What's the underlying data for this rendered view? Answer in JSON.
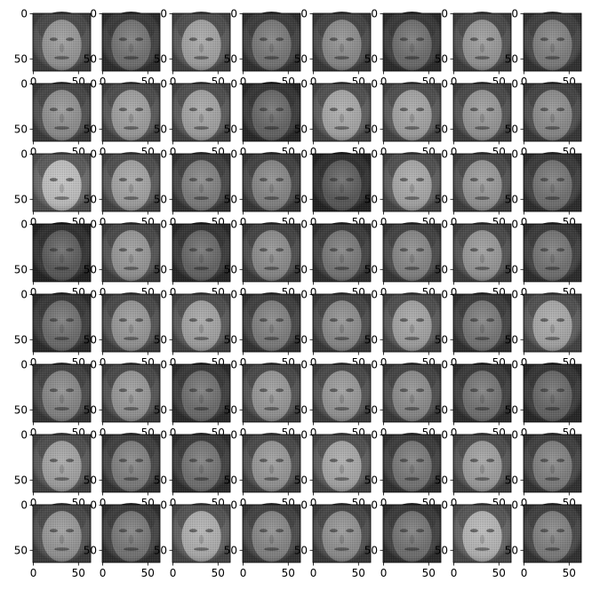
{
  "figure": {
    "rows": 8,
    "cols": 8,
    "x_ticks": [
      "0",
      "50"
    ],
    "y_ticks": [
      "0",
      "50"
    ],
    "image_extent": 64,
    "colormap": "gray",
    "background": "#ffffff"
  },
  "panels": [
    {
      "brightness": 0.55
    },
    {
      "brightness": 0.4
    },
    {
      "brightness": 0.6
    },
    {
      "brightness": 0.42
    },
    {
      "brightness": 0.5
    },
    {
      "brightness": 0.38
    },
    {
      "brightness": 0.55
    },
    {
      "brightness": 0.45
    },
    {
      "brightness": 0.52
    },
    {
      "brightness": 0.58
    },
    {
      "brightness": 0.6
    },
    {
      "brightness": 0.35
    },
    {
      "brightness": 0.62
    },
    {
      "brightness": 0.6
    },
    {
      "brightness": 0.55
    },
    {
      "brightness": 0.5
    },
    {
      "brightness": 0.72
    },
    {
      "brightness": 0.6
    },
    {
      "brightness": 0.45
    },
    {
      "brightness": 0.48
    },
    {
      "brightness": 0.3
    },
    {
      "brightness": 0.62
    },
    {
      "brightness": 0.55
    },
    {
      "brightness": 0.4
    },
    {
      "brightness": 0.3
    },
    {
      "brightness": 0.55
    },
    {
      "brightness": 0.35
    },
    {
      "brightness": 0.5
    },
    {
      "brightness": 0.42
    },
    {
      "brightness": 0.48
    },
    {
      "brightness": 0.55
    },
    {
      "brightness": 0.4
    },
    {
      "brightness": 0.38
    },
    {
      "brightness": 0.55
    },
    {
      "brightness": 0.6
    },
    {
      "brightness": 0.45
    },
    {
      "brightness": 0.5
    },
    {
      "brightness": 0.6
    },
    {
      "brightness": 0.42
    },
    {
      "brightness": 0.62
    },
    {
      "brightness": 0.48
    },
    {
      "brightness": 0.55
    },
    {
      "brightness": 0.38
    },
    {
      "brightness": 0.55
    },
    {
      "brightness": 0.55
    },
    {
      "brightness": 0.5
    },
    {
      "brightness": 0.4
    },
    {
      "brightness": 0.35
    },
    {
      "brightness": 0.6
    },
    {
      "brightness": 0.45
    },
    {
      "brightness": 0.4
    },
    {
      "brightness": 0.55
    },
    {
      "brightness": 0.62
    },
    {
      "brightness": 0.42
    },
    {
      "brightness": 0.58
    },
    {
      "brightness": 0.45
    },
    {
      "brightness": 0.55
    },
    {
      "brightness": 0.42
    },
    {
      "brightness": 0.65
    },
    {
      "brightness": 0.48
    },
    {
      "brightness": 0.52
    },
    {
      "brightness": 0.4
    },
    {
      "brightness": 0.68
    },
    {
      "brightness": 0.45
    }
  ]
}
